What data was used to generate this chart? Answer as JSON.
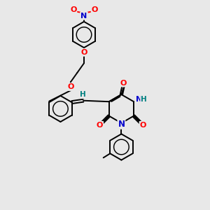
{
  "bg": "#e8e8e8",
  "bc": "#000000",
  "oc": "#ff0000",
  "nc": "#0000cc",
  "hc": "#008080",
  "lw": 1.4,
  "r_ring": 0.62,
  "xlim": [
    0,
    10
  ],
  "ylim": [
    0,
    10
  ]
}
